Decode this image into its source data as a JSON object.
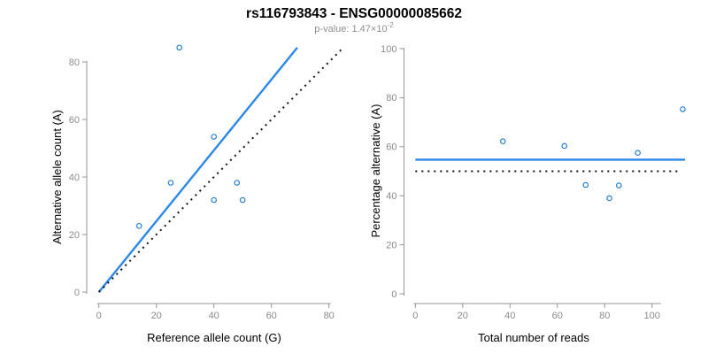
{
  "header": {
    "title": "rs116793843 - ENSG00000085662",
    "subtitle_text": "p-value: 1.47×10",
    "subtitle_exponent": "-2"
  },
  "colors": {
    "line_blue": "#2b87e8",
    "point_blue": "#2980d0",
    "dotted_black": "#111111",
    "axis_gray": "#969696",
    "tick_label_gray": "#8c8c8c",
    "title_black": "#000000",
    "subtitle_gray": "#8f8f8f"
  },
  "chart_data": [
    {
      "type": "scatter",
      "title": "rs116793843 - ENSG00000085662",
      "xlabel": "Reference allele count (G)",
      "ylabel": "Alternative allele count (A)",
      "xlim": [
        0,
        80
      ],
      "ylim": [
        0,
        85
      ],
      "xticks": [
        0,
        20,
        40,
        60,
        80
      ],
      "yticks": [
        0,
        20,
        40,
        60,
        80
      ],
      "grid": false,
      "legend": null,
      "points": [
        [
          14,
          23
        ],
        [
          25,
          38
        ],
        [
          28,
          85
        ],
        [
          40,
          32
        ],
        [
          40,
          54
        ],
        [
          48,
          38
        ],
        [
          50,
          32
        ]
      ],
      "lines": [
        {
          "name": "fit-line",
          "style": "solid",
          "color": "blue",
          "x1": 0,
          "y1": 0,
          "x2": 69,
          "y2": 85
        },
        {
          "name": "identity-line",
          "style": "dotted",
          "color": "black",
          "x1": 0,
          "y1": 0,
          "x2": 85,
          "y2": 85
        }
      ]
    },
    {
      "type": "scatter",
      "xlabel": "Total number of reads",
      "ylabel": "Percentage alternative (A)",
      "xlim": [
        0,
        114
      ],
      "ylim": [
        0,
        100
      ],
      "xticks": [
        0,
        20,
        40,
        60,
        80,
        100
      ],
      "yticks": [
        0,
        20,
        40,
        60,
        80,
        100
      ],
      "grid": false,
      "legend": null,
      "points": [
        [
          37,
          62.2
        ],
        [
          63,
          60.3
        ],
        [
          72,
          44.4
        ],
        [
          82,
          39
        ],
        [
          86,
          44.2
        ],
        [
          94,
          57.5
        ],
        [
          113,
          75.3
        ]
      ],
      "lines": [
        {
          "name": "mean-percentage-line",
          "style": "solid",
          "color": "blue",
          "x1": 0,
          "y1": 54.7,
          "x2": 114,
          "y2": 54.7
        },
        {
          "name": "null-50pct-line",
          "style": "dotted",
          "color": "black",
          "x1": 0,
          "y1": 50,
          "x2": 112,
          "y2": 50
        }
      ]
    }
  ]
}
